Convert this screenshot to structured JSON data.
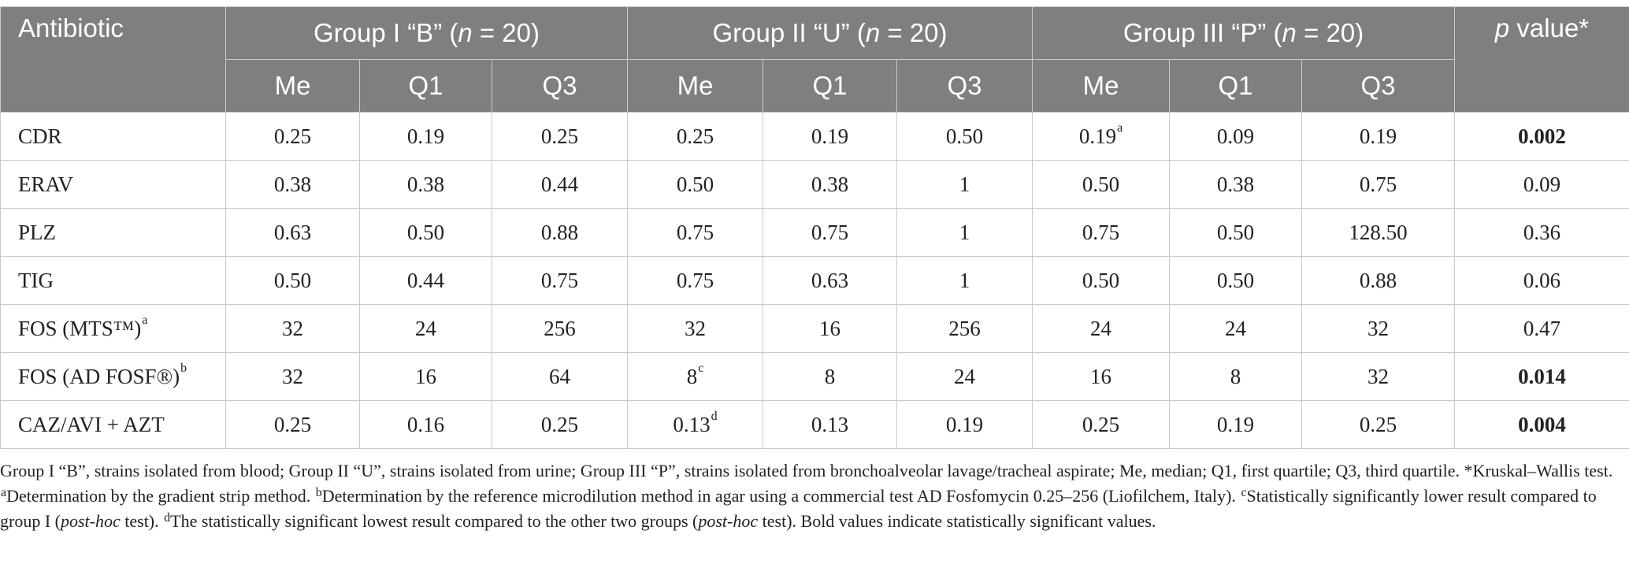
{
  "header": {
    "antibiotic": "Antibiotic",
    "groups": [
      {
        "pre": "Group I “B” (",
        "n": "n",
        "post": " = 20)"
      },
      {
        "pre": "Group II “U” (",
        "n": "n",
        "post": " = 20)"
      },
      {
        "pre": "Group III “P” (",
        "n": "n",
        "post": " = 20)"
      }
    ],
    "p_italic": "p",
    "p_rest": " value*",
    "sub": [
      "Me",
      "Q1",
      "Q3",
      "Me",
      "Q1",
      "Q3",
      "Me",
      "Q1",
      "Q3"
    ]
  },
  "rows": [
    {
      "name": "CDR",
      "name_sup": "",
      "cells": [
        {
          "v": "0.25",
          "sup": ""
        },
        {
          "v": "0.19",
          "sup": ""
        },
        {
          "v": "0.25",
          "sup": ""
        },
        {
          "v": "0.25",
          "sup": ""
        },
        {
          "v": "0.19",
          "sup": ""
        },
        {
          "v": "0.50",
          "sup": ""
        },
        {
          "v": "0.19",
          "sup": "a"
        },
        {
          "v": "0.09",
          "sup": ""
        },
        {
          "v": "0.19",
          "sup": ""
        }
      ],
      "p": "0.002",
      "p_bold": true
    },
    {
      "name": "ERAV",
      "name_sup": "",
      "cells": [
        {
          "v": "0.38",
          "sup": ""
        },
        {
          "v": "0.38",
          "sup": ""
        },
        {
          "v": "0.44",
          "sup": ""
        },
        {
          "v": "0.50",
          "sup": ""
        },
        {
          "v": "0.38",
          "sup": ""
        },
        {
          "v": "1",
          "sup": ""
        },
        {
          "v": "0.50",
          "sup": ""
        },
        {
          "v": "0.38",
          "sup": ""
        },
        {
          "v": "0.75",
          "sup": ""
        }
      ],
      "p": "0.09",
      "p_bold": false
    },
    {
      "name": "PLZ",
      "name_sup": "",
      "cells": [
        {
          "v": "0.63",
          "sup": ""
        },
        {
          "v": "0.50",
          "sup": ""
        },
        {
          "v": "0.88",
          "sup": ""
        },
        {
          "v": "0.75",
          "sup": ""
        },
        {
          "v": "0.75",
          "sup": ""
        },
        {
          "v": "1",
          "sup": ""
        },
        {
          "v": "0.75",
          "sup": ""
        },
        {
          "v": "0.50",
          "sup": ""
        },
        {
          "v": "128.50",
          "sup": ""
        }
      ],
      "p": "0.36",
      "p_bold": false
    },
    {
      "name": "TIG",
      "name_sup": "",
      "cells": [
        {
          "v": "0.50",
          "sup": ""
        },
        {
          "v": "0.44",
          "sup": ""
        },
        {
          "v": "0.75",
          "sup": ""
        },
        {
          "v": "0.75",
          "sup": ""
        },
        {
          "v": "0.63",
          "sup": ""
        },
        {
          "v": "1",
          "sup": ""
        },
        {
          "v": "0.50",
          "sup": ""
        },
        {
          "v": "0.50",
          "sup": ""
        },
        {
          "v": "0.88",
          "sup": ""
        }
      ],
      "p": "0.06",
      "p_bold": false
    },
    {
      "name": "FOS (MTS™)",
      "name_sup": "a",
      "cells": [
        {
          "v": "32",
          "sup": ""
        },
        {
          "v": "24",
          "sup": ""
        },
        {
          "v": "256",
          "sup": ""
        },
        {
          "v": "32",
          "sup": ""
        },
        {
          "v": "16",
          "sup": ""
        },
        {
          "v": "256",
          "sup": ""
        },
        {
          "v": "24",
          "sup": ""
        },
        {
          "v": "24",
          "sup": ""
        },
        {
          "v": "32",
          "sup": ""
        }
      ],
      "p": "0.47",
      "p_bold": false
    },
    {
      "name": "FOS (AD FOSF®)",
      "name_sup": "b",
      "cells": [
        {
          "v": "32",
          "sup": ""
        },
        {
          "v": "16",
          "sup": ""
        },
        {
          "v": "64",
          "sup": ""
        },
        {
          "v": "8",
          "sup": "c"
        },
        {
          "v": "8",
          "sup": ""
        },
        {
          "v": "24",
          "sup": ""
        },
        {
          "v": "16",
          "sup": ""
        },
        {
          "v": "8",
          "sup": ""
        },
        {
          "v": "32",
          "sup": ""
        }
      ],
      "p": "0.014",
      "p_bold": true
    },
    {
      "name": "CAZ/AVI + AZT",
      "name_sup": "",
      "cells": [
        {
          "v": "0.25",
          "sup": ""
        },
        {
          "v": "0.16",
          "sup": ""
        },
        {
          "v": "0.25",
          "sup": ""
        },
        {
          "v": "0.13",
          "sup": "d"
        },
        {
          "v": "0.13",
          "sup": ""
        },
        {
          "v": "0.19",
          "sup": ""
        },
        {
          "v": "0.25",
          "sup": ""
        },
        {
          "v": "0.19",
          "sup": ""
        },
        {
          "v": "0.25",
          "sup": ""
        }
      ],
      "p": "0.004",
      "p_bold": true
    }
  ],
  "footnote": {
    "s1": "Group I “B”, strains isolated from blood; Group II “U”, strains isolated from urine; Group III “P”, strains isolated from bronchoalveolar lavage/tracheal aspirate; Me, median; Q1, first quartile; Q3, third quartile. *Kruskal–Wallis test. ",
    "a_mark": "a",
    "a_text": "Determination by the gradient strip method. ",
    "b_mark": "b",
    "b_text": "Determination by the reference microdilution method in agar using a commercial test AD Fosfomycin 0.25–256 (Liofilchem, Italy). ",
    "c_mark": "c",
    "c_text": "Statistically significantly lower result compared to group I (",
    "c_italic": "post-hoc",
    "c_end": " test). ",
    "d_mark": "d",
    "d_text": "The statistically significant lowest result compared to the other two groups (",
    "d_italic": "post-hoc",
    "d_end": " test). Bold values indicate statistically significant values."
  },
  "colors": {
    "header_bg": "#7f7f7f",
    "header_text": "#ffffff",
    "border": "#c9c9c9"
  }
}
